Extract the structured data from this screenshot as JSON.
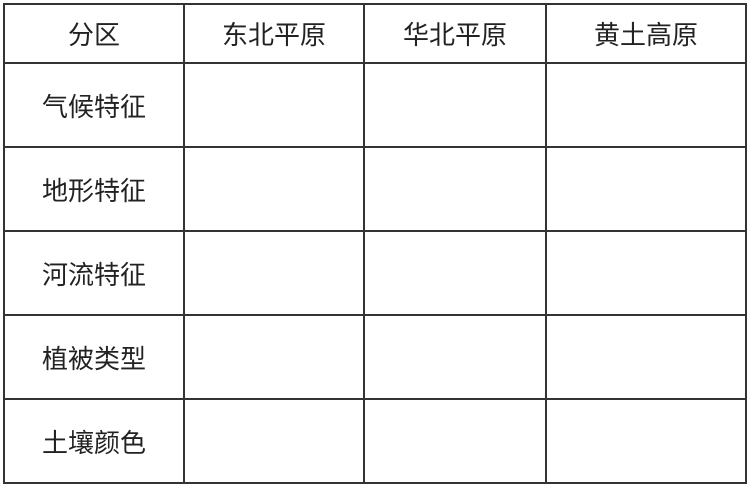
{
  "table": {
    "headers": [
      "分区",
      "东北平原",
      "华北平原",
      "黄土高原"
    ],
    "rows": [
      {
        "label": "气候特征",
        "cells": [
          "",
          "",
          ""
        ]
      },
      {
        "label": "地形特征",
        "cells": [
          "",
          "",
          ""
        ]
      },
      {
        "label": "河流特征",
        "cells": [
          "",
          "",
          ""
        ]
      },
      {
        "label": "植被类型",
        "cells": [
          "",
          "",
          ""
        ]
      },
      {
        "label": "土壤颜色",
        "cells": [
          "",
          "",
          ""
        ]
      }
    ]
  }
}
